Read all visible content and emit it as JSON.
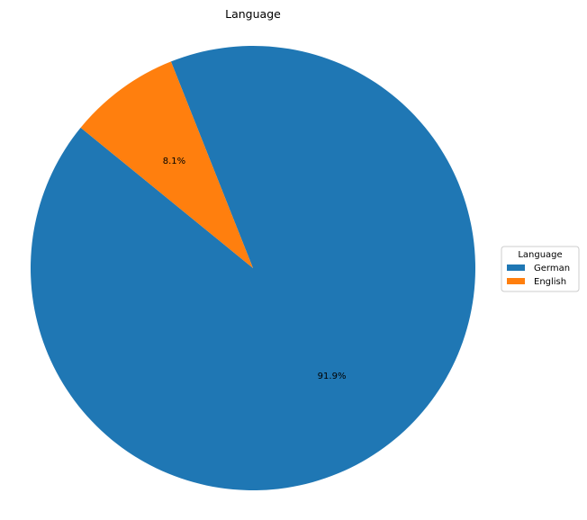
{
  "chart_data": {
    "type": "pie",
    "title": "Language",
    "slices": [
      {
        "label": "German",
        "value": 91.9,
        "display": "91.9%",
        "color": "#1f77b4"
      },
      {
        "label": "English",
        "value": 8.1,
        "display": "8.1%",
        "color": "#ff7f0e"
      }
    ],
    "legend": {
      "title": "Language",
      "placement": "center-right",
      "items": [
        "German",
        "English"
      ]
    }
  }
}
